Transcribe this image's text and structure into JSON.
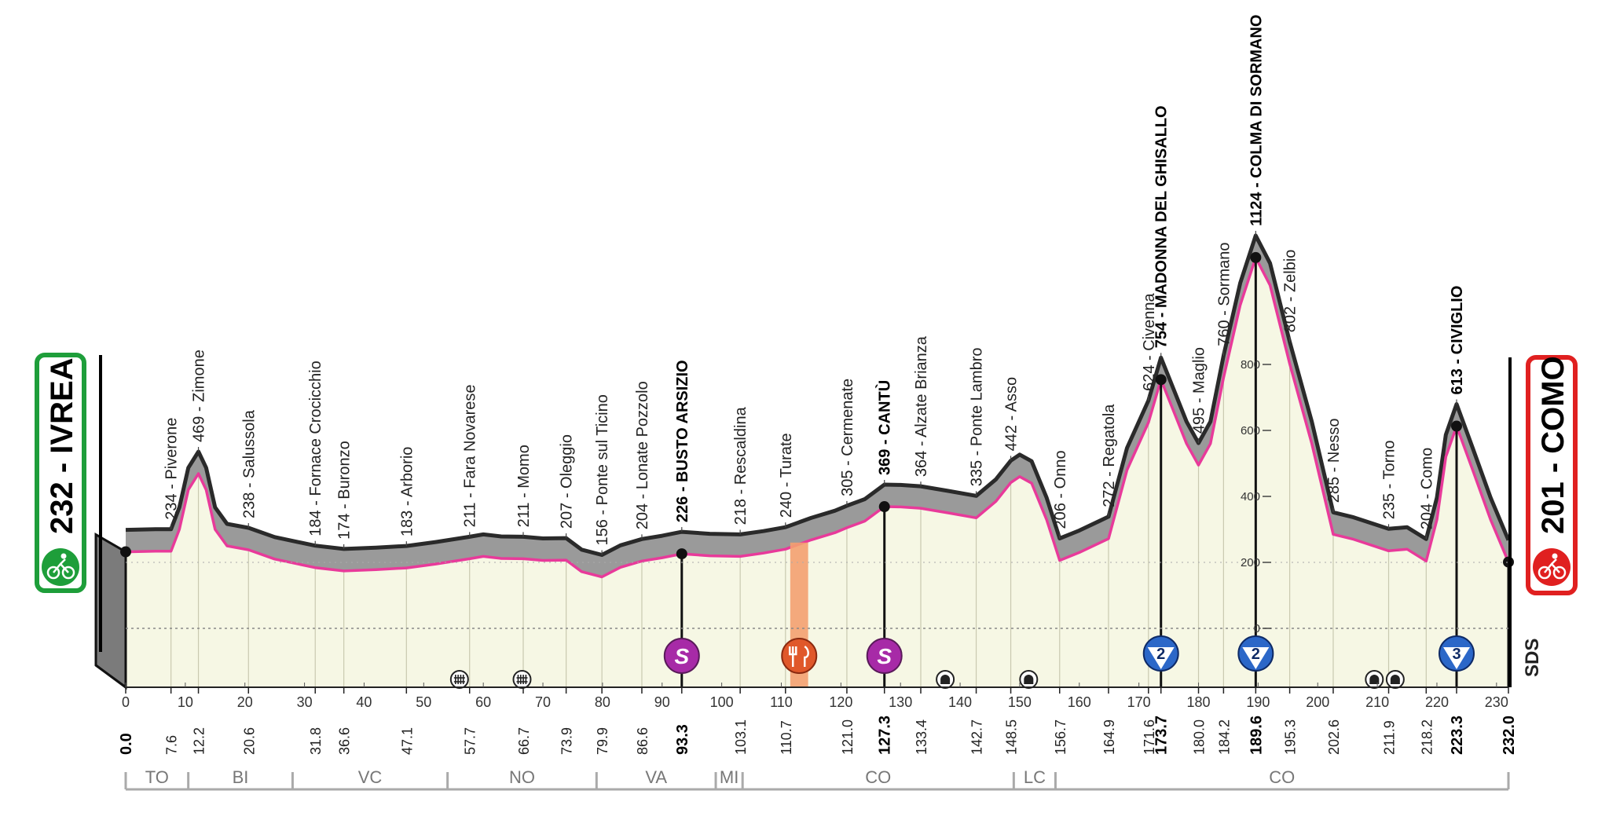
{
  "start": {
    "label": "232 - IVREA",
    "color": "#1e9e3a"
  },
  "finish": {
    "label": "201 - COMO",
    "color": "#e02020"
  },
  "brand": "SDS",
  "total_km": 232.0,
  "altitude_scale": {
    "ticks": [
      "800",
      "600",
      "400",
      "200",
      "0"
    ]
  },
  "km_ticks": [
    "0",
    "10",
    "20",
    "30",
    "40",
    "50",
    "60",
    "70",
    "80",
    "90",
    "100",
    "110",
    "120",
    "130",
    "140",
    "150",
    "160",
    "170",
    "180",
    "190",
    "200",
    "210",
    "220",
    "230"
  ],
  "waypoints": [
    {
      "km": 0.0,
      "label": "",
      "dist": "0.0",
      "major": true,
      "marker": true
    },
    {
      "km": 7.6,
      "label": "234 - Piverone",
      "dist": "7.6"
    },
    {
      "km": 12.2,
      "label": "469 - Zimone",
      "dist": "12.2"
    },
    {
      "km": 20.6,
      "label": "238 - Salussola",
      "dist": "20.6"
    },
    {
      "km": 31.8,
      "label": "184 - Fornace Crocicchio",
      "dist": "31.8"
    },
    {
      "km": 36.6,
      "label": "174 - Buronzo",
      "dist": "36.6"
    },
    {
      "km": 47.1,
      "label": "183 - Arborio",
      "dist": "47.1"
    },
    {
      "km": 57.7,
      "label": "211 - Fara Novarese",
      "dist": "57.7"
    },
    {
      "km": 66.7,
      "label": "211 - Momo",
      "dist": "66.7"
    },
    {
      "km": 73.9,
      "label": "207 - Oleggio",
      "dist": "73.9"
    },
    {
      "km": 79.9,
      "label": "156 - Ponte sul Ticino",
      "dist": "79.9"
    },
    {
      "km": 86.6,
      "label": "204 - Lonate Pozzolo",
      "dist": "86.6"
    },
    {
      "km": 93.3,
      "label": "226 - BUSTO ARSIZIO",
      "dist": "93.3",
      "major": true,
      "marker": true
    },
    {
      "km": 103.1,
      "label": "218 - Rescaldina",
      "dist": "103.1"
    },
    {
      "km": 110.7,
      "label": "240 - Turate",
      "dist": "110.7"
    },
    {
      "km": 121.0,
      "label": "305 - Cermenate",
      "dist": "121.0"
    },
    {
      "km": 127.3,
      "label": "369 - CANTÙ",
      "dist": "127.3",
      "major": true,
      "marker": true
    },
    {
      "km": 133.4,
      "label": "364 - Alzate Brianza",
      "dist": "133.4"
    },
    {
      "km": 142.7,
      "label": "335 - Ponte Lambro",
      "dist": "142.7"
    },
    {
      "km": 148.5,
      "label": "442 - Asso",
      "dist": "148.5"
    },
    {
      "km": 156.7,
      "label": "206 - Onno",
      "dist": "156.7"
    },
    {
      "km": 164.9,
      "label": "272 - Regatola",
      "dist": "164.9"
    },
    {
      "km": 171.6,
      "label": "624 - Civenna",
      "dist": "171.6"
    },
    {
      "km": 173.7,
      "label": "754 - MADONNA DEL GHISALLO",
      "dist": "173.7",
      "major": true,
      "marker": true
    },
    {
      "km": 180.0,
      "label": "495 - Maglio",
      "dist": "180.0"
    },
    {
      "km": 184.2,
      "label": "760 - Sormano",
      "dist": "184.2"
    },
    {
      "km": 189.6,
      "label": "1124 - COLMA DI SORMANO",
      "dist": "189.6",
      "major": true,
      "marker": true
    },
    {
      "km": 195.3,
      "label": "802 - Zelbio",
      "dist": "195.3"
    },
    {
      "km": 202.6,
      "label": "285 - Nesso",
      "dist": "202.6"
    },
    {
      "km": 211.9,
      "label": "235 - Torno",
      "dist": "211.9"
    },
    {
      "km": 218.2,
      "label": "204 - Como",
      "dist": "218.2"
    },
    {
      "km": 223.3,
      "label": "613 - CIVIGLIO",
      "dist": "223.3",
      "major": true,
      "marker": true
    },
    {
      "km": 232.0,
      "label": "",
      "dist": "232.0",
      "major": true,
      "marker": true
    }
  ],
  "elevation_profile": [
    [
      0,
      232
    ],
    [
      5,
      234
    ],
    [
      7.6,
      234
    ],
    [
      9,
      300
    ],
    [
      10.5,
      420
    ],
    [
      12.2,
      469
    ],
    [
      13.5,
      420
    ],
    [
      15,
      300
    ],
    [
      17,
      250
    ],
    [
      20.6,
      238
    ],
    [
      25,
      210
    ],
    [
      31.8,
      184
    ],
    [
      36.6,
      174
    ],
    [
      42,
      178
    ],
    [
      47.1,
      183
    ],
    [
      52,
      195
    ],
    [
      57.7,
      211
    ],
    [
      60,
      218
    ],
    [
      63,
      212
    ],
    [
      66.7,
      211
    ],
    [
      70,
      206
    ],
    [
      73.9,
      207
    ],
    [
      76.5,
      172
    ],
    [
      79.9,
      156
    ],
    [
      83,
      185
    ],
    [
      86.6,
      204
    ],
    [
      90,
      214
    ],
    [
      93.3,
      226
    ],
    [
      98,
      220
    ],
    [
      103.1,
      218
    ],
    [
      107,
      228
    ],
    [
      110.7,
      240
    ],
    [
      115,
      268
    ],
    [
      119,
      290
    ],
    [
      121,
      305
    ],
    [
      124,
      325
    ],
    [
      127.3,
      369
    ],
    [
      130,
      368
    ],
    [
      133.4,
      364
    ],
    [
      138,
      350
    ],
    [
      142.7,
      335
    ],
    [
      146,
      385
    ],
    [
      148.5,
      442
    ],
    [
      150,
      460
    ],
    [
      152,
      440
    ],
    [
      154.5,
      330
    ],
    [
      156.7,
      206
    ],
    [
      160,
      230
    ],
    [
      164.9,
      272
    ],
    [
      168,
      480
    ],
    [
      171.6,
      624
    ],
    [
      173.7,
      754
    ],
    [
      176,
      650
    ],
    [
      178,
      560
    ],
    [
      180,
      495
    ],
    [
      182,
      560
    ],
    [
      184.2,
      760
    ],
    [
      187,
      980
    ],
    [
      189.6,
      1124
    ],
    [
      192,
      1040
    ],
    [
      195.3,
      802
    ],
    [
      199,
      560
    ],
    [
      202.6,
      285
    ],
    [
      206,
      270
    ],
    [
      211.9,
      235
    ],
    [
      215,
      240
    ],
    [
      218.2,
      204
    ],
    [
      220,
      330
    ],
    [
      221.5,
      520
    ],
    [
      223.3,
      613
    ],
    [
      226,
      480
    ],
    [
      229,
      330
    ],
    [
      232,
      201
    ]
  ],
  "gpm_climbs": [
    {
      "km": 173.7,
      "category": "2"
    },
    {
      "km": 189.6,
      "category": "2"
    },
    {
      "km": 223.3,
      "category": "3"
    }
  ],
  "sprints": [
    {
      "km": 93.3,
      "letter": "S",
      "color": "#a72aa7"
    },
    {
      "km": 127.3,
      "letter": "S",
      "color": "#a72aa7"
    }
  ],
  "feed_zone": {
    "km_start": 111.5,
    "km_end": 114.5
  },
  "level_crossings_km": [
    56.0,
    66.5
  ],
  "tunnels_km": [
    137.5,
    151.5,
    209.5,
    213.0
  ],
  "provinces": [
    {
      "name": "TO",
      "from": 0,
      "to": 10.5
    },
    {
      "name": "BI",
      "from": 10.5,
      "to": 28
    },
    {
      "name": "VC",
      "from": 28,
      "to": 54
    },
    {
      "name": "NO",
      "from": 54,
      "to": 79
    },
    {
      "name": "VA",
      "from": 79,
      "to": 99
    },
    {
      "name": "MI",
      "from": 99,
      "to": 103.5
    },
    {
      "name": "CO",
      "from": 103.5,
      "to": 149
    },
    {
      "name": "LC",
      "from": 149,
      "to": 156
    },
    {
      "name": "CO",
      "from": 156,
      "to": 232
    }
  ]
}
